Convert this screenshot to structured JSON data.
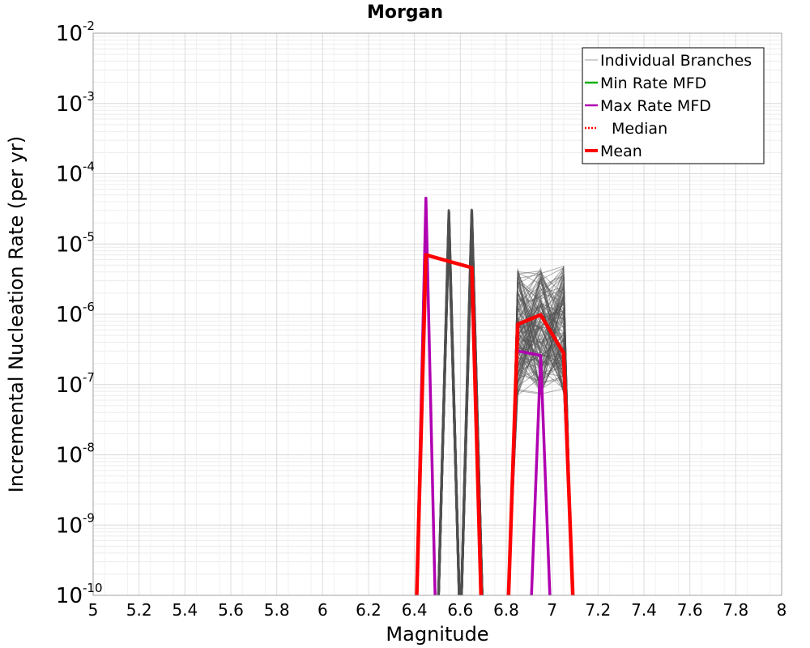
{
  "chart_data": {
    "type": "line",
    "title": "Morgan",
    "xlabel": "Magnitude",
    "ylabel": "Incremental Nucleation Rate (per yr)",
    "xlim": [
      5,
      8
    ],
    "ylim": [
      1e-10,
      0.01
    ],
    "yscale": "log",
    "grid": true,
    "x_ticks": [
      "5",
      "5.2",
      "5.4",
      "5.6",
      "5.8",
      "6",
      "6.2",
      "6.4",
      "6.6",
      "6.8",
      "7",
      "7.2",
      "7.4",
      "7.6",
      "7.8",
      "8"
    ],
    "y_ticks": [
      {
        "base": "10",
        "exp": "-10"
      },
      {
        "base": "10",
        "exp": "-9"
      },
      {
        "base": "10",
        "exp": "-8"
      },
      {
        "base": "10",
        "exp": "-7"
      },
      {
        "base": "10",
        "exp": "-6"
      },
      {
        "base": "10",
        "exp": "-5"
      },
      {
        "base": "10",
        "exp": "-4"
      },
      {
        "base": "10",
        "exp": "-3"
      },
      {
        "base": "10",
        "exp": "-2"
      }
    ],
    "legend_position": "top-right",
    "legend": [
      {
        "label": "Individual Branches",
        "color": "#a0a0a0",
        "style": "thin"
      },
      {
        "label": "Min Rate MFD",
        "color": "#00b000",
        "style": "solid"
      },
      {
        "label": "Max Rate MFD",
        "color": "#b000b0",
        "style": "solid"
      },
      {
        "label": "Median",
        "color": "#ff0000",
        "style": "dotted"
      },
      {
        "label": "Mean",
        "color": "#ff0000",
        "style": "thick"
      }
    ],
    "branch_count": 150,
    "branch_color": "#505050",
    "series": [
      {
        "name": "Max Rate MFD",
        "color": "#b000b0",
        "x": [
          6.41,
          6.45,
          6.49
        ],
        "y": [
          1e-10,
          4.5e-05,
          1e-10
        ],
        "segments": [
          {
            "x": [
              6.41,
              6.45,
              6.49
            ],
            "y": [
              1e-10,
              4.5e-05,
              1e-10
            ]
          },
          {
            "x": [
              6.85,
              6.95
            ],
            "y": [
              3e-07,
              2.6e-07
            ]
          },
          {
            "x": [
              6.91,
              6.95,
              6.99
            ],
            "y": [
              1e-10,
              2.6e-07,
              1e-10
            ]
          }
        ]
      },
      {
        "name": "Mean",
        "color": "#ff0000",
        "segments": [
          {
            "x": [
              6.41,
              6.45,
              6.65,
              6.69
            ],
            "y": [
              1e-10,
              7e-06,
              4.6e-06,
              1e-10
            ]
          },
          {
            "x": [
              6.81,
              6.85,
              6.95,
              7.05,
              7.09
            ],
            "y": [
              1e-10,
              7.2e-07,
              9.8e-07,
              2.8e-07,
              1e-10
            ]
          }
        ]
      }
    ],
    "branch_groups": [
      {
        "spike_x": 6.55,
        "peak_min": 1.5e-05,
        "peak_max": 3.2e-05
      },
      {
        "spike_x": 6.65,
        "peak_min": 1.5e-05,
        "peak_max": 3.2e-05
      },
      {
        "x": [
          6.85,
          6.95,
          7.05
        ],
        "y_min": 7e-08,
        "y_max": 5e-06
      }
    ]
  }
}
